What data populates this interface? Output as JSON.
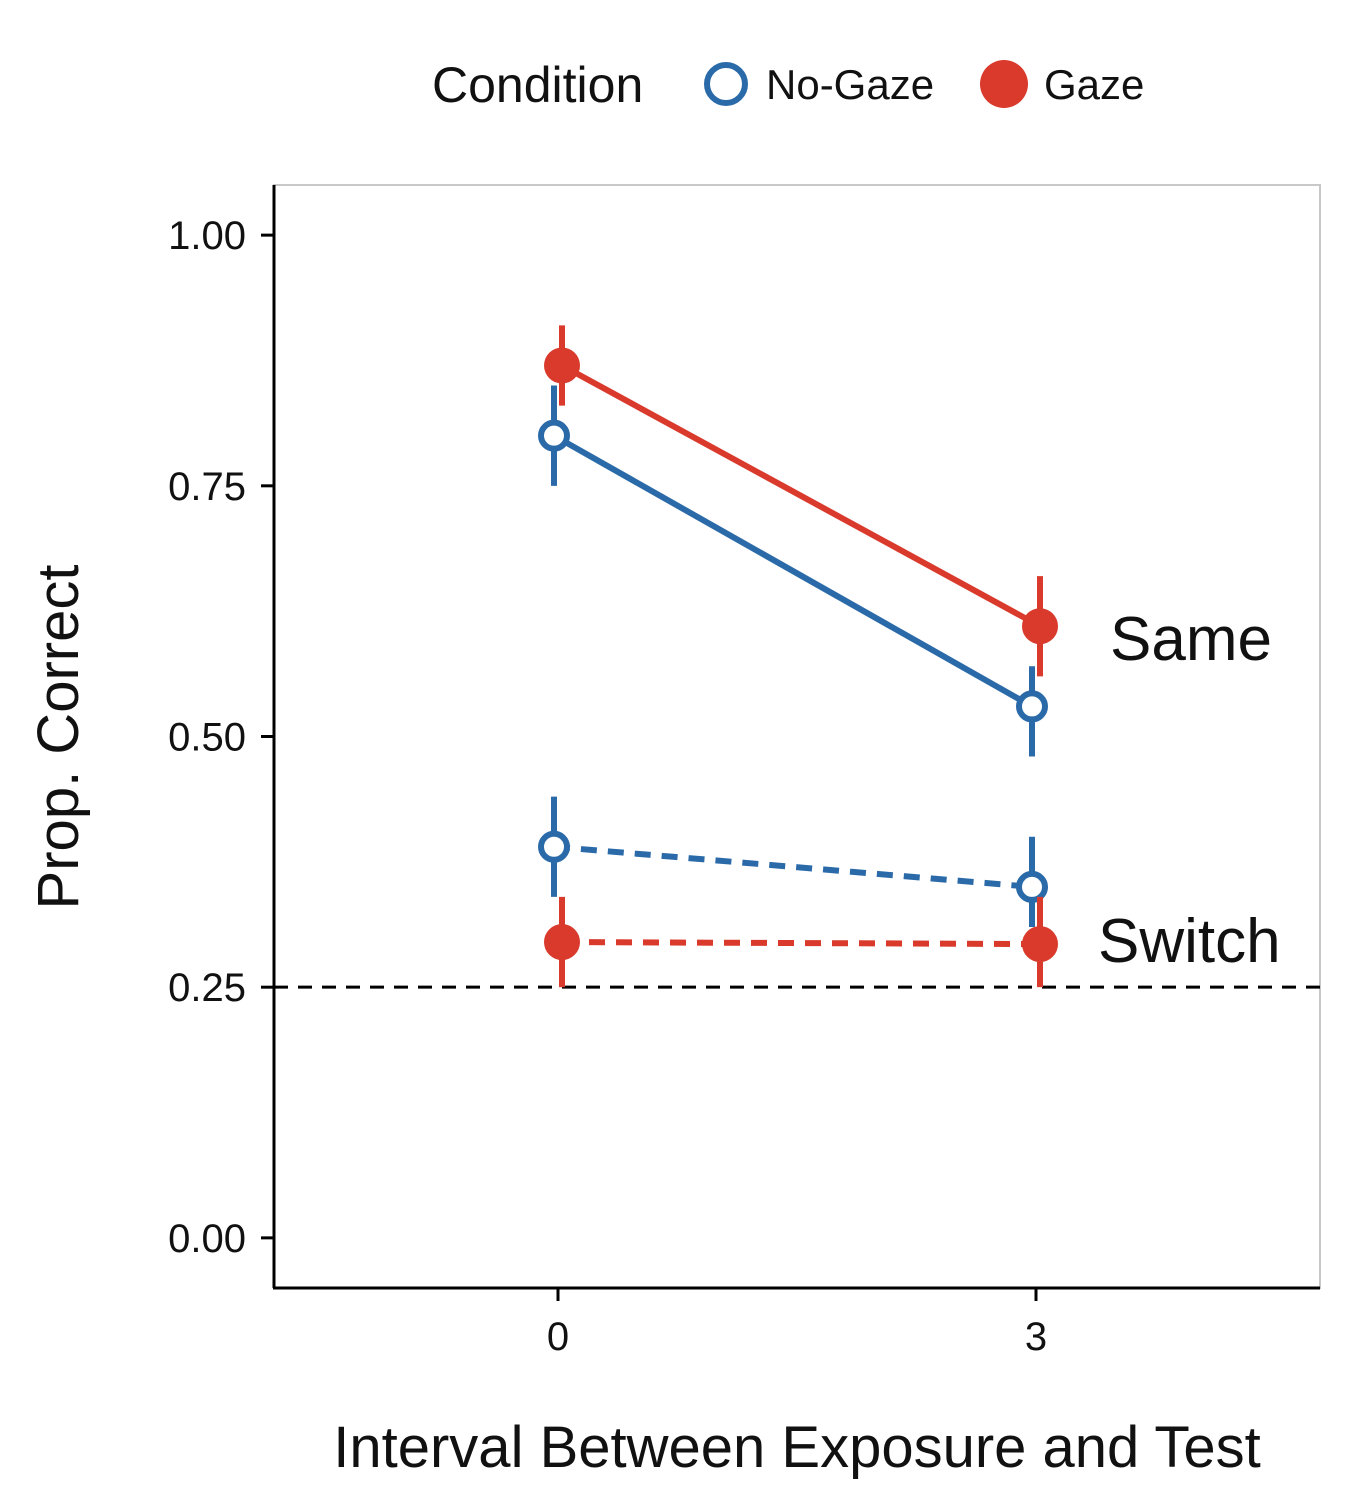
{
  "chart_data": {
    "type": "line",
    "title": "",
    "xlabel": "Interval Between Exposure and Test",
    "ylabel": "Prop. Correct",
    "x_categories": [
      "0",
      "3"
    ],
    "y_ticks": [
      "0.00",
      "0.25",
      "0.50",
      "0.75",
      "1.00"
    ],
    "ylim": [
      -0.05,
      1.05
    ],
    "reference_line": {
      "y": 0.25,
      "style": "dashed"
    },
    "legend": {
      "title": "Condition",
      "placement": "top",
      "entries": [
        {
          "label": "No-Gaze",
          "marker": "open-circle",
          "color": "#2b6aa8"
        },
        {
          "label": "Gaze",
          "marker": "filled-circle",
          "color": "#d93a2b"
        }
      ]
    },
    "annotations": [
      {
        "text": "Same",
        "group": "Same"
      },
      {
        "text": "Switch",
        "group": "Switch"
      }
    ],
    "series": [
      {
        "condition": "Gaze",
        "trial": "Same",
        "linestyle": "solid",
        "color": "#d93a2b",
        "points": [
          {
            "x": "0",
            "y": 0.87,
            "lo": 0.83,
            "hi": 0.91
          },
          {
            "x": "3",
            "y": 0.61,
            "lo": 0.56,
            "hi": 0.66
          }
        ]
      },
      {
        "condition": "No-Gaze",
        "trial": "Same",
        "linestyle": "solid",
        "color": "#2b6aa8",
        "points": [
          {
            "x": "0",
            "y": 0.8,
            "lo": 0.75,
            "hi": 0.85
          },
          {
            "x": "3",
            "y": 0.53,
            "lo": 0.48,
            "hi": 0.57
          }
        ]
      },
      {
        "condition": "No-Gaze",
        "trial": "Switch",
        "linestyle": "dashed",
        "color": "#2b6aa8",
        "points": [
          {
            "x": "0",
            "y": 0.39,
            "lo": 0.34,
            "hi": 0.44
          },
          {
            "x": "3",
            "y": 0.35,
            "lo": 0.31,
            "hi": 0.4
          }
        ]
      },
      {
        "condition": "Gaze",
        "trial": "Switch",
        "linestyle": "dashed",
        "color": "#d93a2b",
        "points": [
          {
            "x": "0",
            "y": 0.295,
            "lo": 0.25,
            "hi": 0.34
          },
          {
            "x": "3",
            "y": 0.293,
            "lo": 0.25,
            "hi": 0.34
          }
        ]
      }
    ]
  }
}
